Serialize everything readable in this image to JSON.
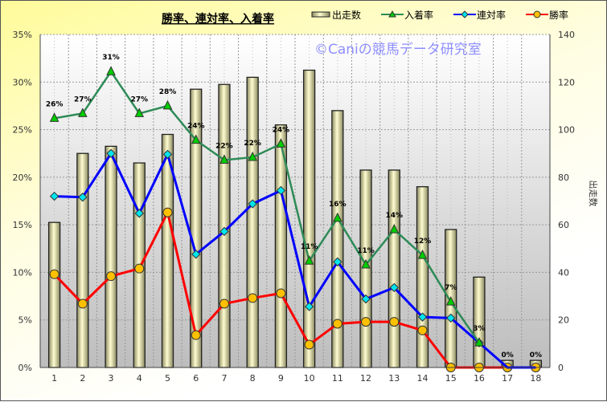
{
  "chart_data": {
    "type": "bar+line",
    "title": "勝率、連対率、入着率",
    "watermark": "©Caniの競馬データ研究室",
    "categories": [
      "1",
      "2",
      "3",
      "4",
      "5",
      "6",
      "7",
      "8",
      "9",
      "10",
      "11",
      "12",
      "13",
      "14",
      "15",
      "16",
      "17",
      "18"
    ],
    "y_left": {
      "ticks": [
        "0%",
        "5%",
        "10%",
        "15%",
        "20%",
        "25%",
        "30%",
        "35%"
      ],
      "range": [
        0,
        35
      ]
    },
    "y_right": {
      "label": "出走数",
      "ticks": [
        "0",
        "20",
        "40",
        "60",
        "80",
        "100",
        "120",
        "140"
      ],
      "range": [
        0,
        140
      ]
    },
    "grid": true,
    "legend_position": "top-right",
    "series": [
      {
        "name": "出走数",
        "type": "bar",
        "axis": "right",
        "color": "#eeeab0",
        "values": [
          61,
          90,
          93,
          86,
          98,
          117,
          119,
          122,
          102,
          125,
          108,
          83,
          83,
          76,
          58,
          38,
          3,
          3
        ]
      },
      {
        "name": "入着率",
        "type": "line",
        "axis": "left",
        "color": "#2e8b57",
        "marker": "triangle",
        "marker_color": "#00cc00",
        "values": [
          26.2,
          26.7,
          31.1,
          26.7,
          27.5,
          23.9,
          21.8,
          22.1,
          23.5,
          11.2,
          15.7,
          10.8,
          14.5,
          11.8,
          6.9,
          2.6,
          0,
          0
        ],
        "labels": [
          "26%",
          "27%",
          "31%",
          "27%",
          "28%",
          "24%",
          "22%",
          "22%",
          "24%",
          "11%",
          "16%",
          "11%",
          "14%",
          "12%",
          "7%",
          "3%",
          "0%",
          "0%"
        ]
      },
      {
        "name": "連対率",
        "type": "line",
        "axis": "left",
        "color": "#0000ff",
        "marker": "diamond",
        "marker_color": "#00e5ee",
        "values": [
          18.0,
          17.9,
          22.5,
          16.2,
          22.4,
          11.9,
          14.3,
          17.2,
          18.6,
          6.4,
          11.1,
          7.2,
          8.4,
          5.3,
          5.2,
          2.6,
          0,
          0
        ]
      },
      {
        "name": "勝率",
        "type": "line",
        "axis": "left",
        "color": "#ff0000",
        "marker": "circle",
        "marker_color": "#ffc000",
        "values": [
          9.8,
          6.7,
          9.6,
          10.4,
          16.3,
          3.4,
          6.7,
          7.3,
          7.8,
          2.4,
          4.6,
          4.8,
          4.8,
          3.9,
          0,
          0,
          0,
          0
        ]
      }
    ]
  }
}
